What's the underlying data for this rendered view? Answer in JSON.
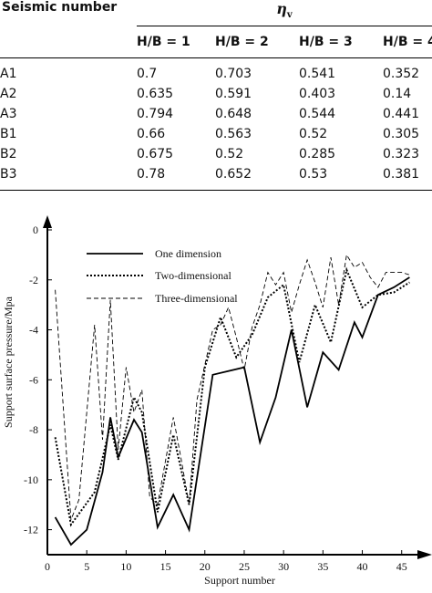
{
  "table": {
    "row_header": "Seismic number",
    "group_header": "η",
    "group_header_sub": "v",
    "columns": [
      "H/B = 1",
      "H/B = 2",
      "H/B = 3",
      "H/B = 4"
    ],
    "rows": [
      {
        "label": "A1",
        "values": [
          "0.7",
          "0.703",
          "0.541",
          "0.352"
        ]
      },
      {
        "label": "A2",
        "values": [
          "0.635",
          "0.591",
          "0.403",
          "0.14"
        ]
      },
      {
        "label": "A3",
        "values": [
          "0.794",
          "0.648",
          "0.544",
          "0.441"
        ]
      },
      {
        "label": "B1",
        "values": [
          "0.66",
          "0.563",
          "0.52",
          "0.305"
        ]
      },
      {
        "label": "B2",
        "values": [
          "0.675",
          "0.52",
          "0.285",
          "0.323"
        ]
      },
      {
        "label": "B3",
        "values": [
          "0.78",
          "0.652",
          "0.53",
          "0.381"
        ]
      }
    ]
  },
  "chart_data": {
    "type": "line",
    "xlabel": "Support number",
    "ylabel": "Support surface pressure/Mpa",
    "xlim": [
      0,
      47
    ],
    "ylim": [
      -13,
      0
    ],
    "xticks": [
      0,
      5,
      10,
      15,
      20,
      25,
      30,
      35,
      40,
      45
    ],
    "yticks": [
      0,
      -2,
      -4,
      -6,
      -8,
      -10,
      -12
    ],
    "legend_position": "top-left",
    "series": [
      {
        "name": "One dimension",
        "style": "solid",
        "x": [
          1,
          3,
          5,
          7,
          8,
          9,
          11,
          12,
          14,
          16,
          18,
          21,
          25,
          27,
          29,
          31,
          33,
          35,
          37,
          39,
          40,
          42,
          44,
          46
        ],
        "y": [
          -11.5,
          -12.6,
          -12.0,
          -9.7,
          -7.5,
          -9.1,
          -7.6,
          -8.1,
          -11.9,
          -10.6,
          -12.0,
          -5.8,
          -5.5,
          -8.5,
          -6.7,
          -4.0,
          -7.1,
          -4.9,
          -5.6,
          -3.7,
          -4.3,
          -2.6,
          -2.3,
          -1.9
        ]
      },
      {
        "name": "Two-dimensional",
        "style": "dotted",
        "x": [
          1,
          3,
          6,
          8,
          9,
          11,
          12,
          14,
          16,
          18,
          20,
          22,
          24,
          26,
          28,
          30,
          32,
          34,
          36,
          38,
          40,
          42,
          44,
          46
        ],
        "y": [
          -8.3,
          -11.8,
          -10.5,
          -7.8,
          -9.2,
          -6.7,
          -7.3,
          -11.3,
          -8.2,
          -11.0,
          -5.5,
          -3.5,
          -5.1,
          -4.2,
          -2.7,
          -2.2,
          -5.3,
          -3.0,
          -4.5,
          -1.6,
          -3.1,
          -2.6,
          -2.5,
          -2.1
        ]
      },
      {
        "name": "Three-dimensional",
        "style": "dashed",
        "x": [
          1,
          3,
          4,
          6,
          7,
          8,
          9,
          10,
          11,
          12,
          13,
          14,
          16,
          17,
          18,
          19,
          20,
          21,
          22,
          23,
          24,
          25,
          26,
          27,
          28,
          29,
          30,
          31,
          32,
          33,
          34,
          35,
          36,
          37,
          38,
          39,
          40,
          41,
          42,
          43,
          44,
          45,
          46
        ],
        "y": [
          -2.4,
          -11.6,
          -10.8,
          -3.8,
          -8.4,
          -2.8,
          -8.8,
          -5.5,
          -7.3,
          -6.4,
          -10.7,
          -11.0,
          -7.5,
          -9.2,
          -11.0,
          -6.8,
          -5.4,
          -4.0,
          -3.8,
          -3.1,
          -4.3,
          -5.6,
          -3.9,
          -3.0,
          -1.7,
          -2.2,
          -1.7,
          -3.3,
          -2.2,
          -1.2,
          -2.1,
          -3.1,
          -1.1,
          -3.0,
          -1.0,
          -1.5,
          -1.3,
          -1.9,
          -2.3,
          -1.7,
          -1.7,
          -1.7,
          -1.8
        ]
      }
    ]
  }
}
